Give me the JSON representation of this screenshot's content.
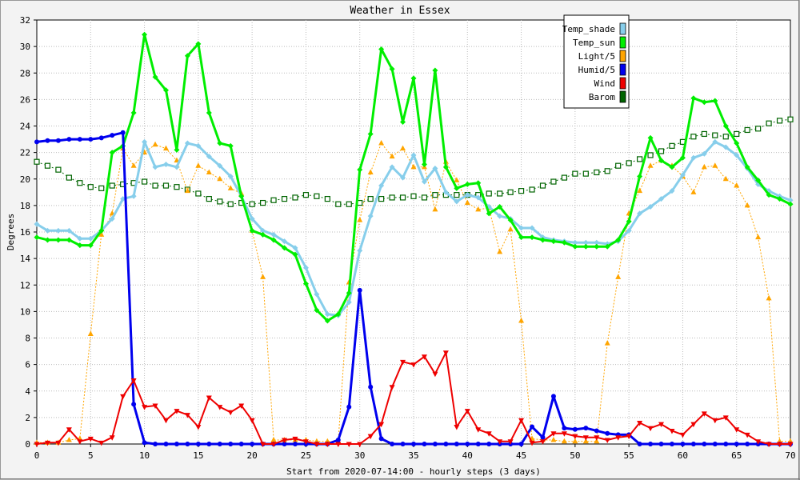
{
  "chart_data": {
    "type": "line",
    "title": "Weather in Essex",
    "xlabel": "Start from 2020-07-14:00 - hourly steps (3 days)",
    "ylabel": "Degrees",
    "xlim": [
      0,
      70
    ],
    "ylim": [
      0,
      32
    ],
    "xticks": [
      0,
      5,
      10,
      15,
      20,
      25,
      30,
      35,
      40,
      45,
      50,
      55,
      60,
      65,
      70
    ],
    "yticks": [
      0,
      2,
      4,
      6,
      8,
      10,
      12,
      14,
      16,
      18,
      20,
      22,
      24,
      26,
      28,
      30,
      32
    ],
    "grid": true,
    "legend_position": "top-right",
    "x": [
      0,
      1,
      2,
      3,
      4,
      5,
      6,
      7,
      8,
      9,
      10,
      11,
      12,
      13,
      14,
      15,
      16,
      17,
      18,
      19,
      20,
      21,
      22,
      23,
      24,
      25,
      26,
      27,
      28,
      29,
      30,
      31,
      32,
      33,
      34,
      35,
      36,
      37,
      38,
      39,
      40,
      41,
      42,
      43,
      44,
      45,
      46,
      47,
      48,
      49,
      50,
      51,
      52,
      53,
      54,
      55,
      56,
      57,
      58,
      59,
      60,
      61,
      62,
      63,
      64,
      65,
      66,
      67,
      68,
      69,
      70
    ],
    "series": [
      {
        "name": "Temp_shade",
        "color": "#87ceeb",
        "marker": "diamond",
        "dash": "",
        "width": 3,
        "values": [
          16.6,
          16.1,
          16.1,
          16.1,
          15.5,
          15.5,
          16.1,
          17.0,
          18.5,
          18.7,
          22.8,
          20.9,
          21.1,
          20.9,
          22.7,
          22.5,
          21.7,
          21.0,
          20.2,
          18.7,
          17.0,
          16.1,
          15.8,
          15.3,
          14.8,
          13.3,
          11.3,
          9.8,
          9.7,
          10.7,
          14.6,
          17.2,
          19.5,
          20.9,
          20.1,
          21.8,
          19.8,
          20.8,
          19.0,
          18.3,
          18.8,
          18.6,
          17.9,
          17.2,
          17.0,
          16.3,
          16.3,
          15.6,
          15.4,
          15.3,
          15.2,
          15.2,
          15.2,
          15.1,
          15.3,
          16.1,
          17.4,
          17.9,
          18.5,
          19.1,
          20.3,
          21.6,
          21.9,
          22.8,
          22.4,
          21.8,
          20.8,
          19.6,
          19.1,
          18.7,
          18.4
        ]
      },
      {
        "name": "Temp_sun",
        "color": "#00ee00",
        "marker": "diamond",
        "dash": "",
        "width": 3,
        "values": [
          15.6,
          15.4,
          15.4,
          15.4,
          15.0,
          15.0,
          16.1,
          22.0,
          22.5,
          25.0,
          30.9,
          27.7,
          26.7,
          22.2,
          29.3,
          30.2,
          25.0,
          22.7,
          22.5,
          18.7,
          16.1,
          15.8,
          15.4,
          14.8,
          14.3,
          12.1,
          10.1,
          9.3,
          9.8,
          11.4,
          20.7,
          23.4,
          29.8,
          28.3,
          24.3,
          27.6,
          21.1,
          28.2,
          20.9,
          19.3,
          19.6,
          19.7,
          17.4,
          17.9,
          16.9,
          15.6,
          15.6,
          15.4,
          15.3,
          15.2,
          14.9,
          14.9,
          14.9,
          14.9,
          15.4,
          16.8,
          20.2,
          23.1,
          21.4,
          20.9,
          21.6,
          26.1,
          25.8,
          25.9,
          24.0,
          22.7,
          20.9,
          19.9,
          18.8,
          18.5,
          18.1
        ]
      },
      {
        "name": "Light/5",
        "color": "#ffa500",
        "marker": "triangle-up",
        "dash": "2,2",
        "width": 1,
        "values": [
          0.1,
          0.1,
          0.1,
          0.3,
          0.4,
          8.3,
          15.8,
          17.4,
          22.3,
          21.0,
          22.0,
          22.6,
          22.3,
          21.4,
          19.1,
          21.0,
          20.5,
          20.0,
          19.3,
          18.9,
          16.1,
          12.6,
          0.3,
          0.3,
          0.3,
          0.3,
          0.2,
          0.2,
          0.2,
          12.2,
          16.9,
          20.5,
          22.7,
          21.7,
          22.3,
          20.9,
          20.9,
          17.7,
          21.3,
          19.9,
          18.2,
          17.7,
          17.8,
          14.5,
          16.2,
          9.3,
          0.4,
          0.3,
          0.3,
          0.2,
          0.2,
          0.2,
          0.2,
          7.6,
          12.6,
          17.4,
          19.1,
          21.0,
          21.4,
          21.0,
          20.2,
          19.0,
          20.9,
          21.0,
          20.0,
          19.5,
          18.0,
          15.6,
          11.0,
          0.2,
          0.2
        ]
      },
      {
        "name": "Humid/5",
        "color": "#0000ee",
        "marker": "circle",
        "dash": "",
        "width": 3,
        "values": [
          22.8,
          22.9,
          22.9,
          23.0,
          23.0,
          23.0,
          23.1,
          23.3,
          23.5,
          3.0,
          0.1,
          0.0,
          0.0,
          0.0,
          0.0,
          0.0,
          0.0,
          0.0,
          0.0,
          0.0,
          0.0,
          0.0,
          0.0,
          0.0,
          0.0,
          0.0,
          0.0,
          0.0,
          0.3,
          2.8,
          11.6,
          4.3,
          0.4,
          0.0,
          0.0,
          0.0,
          0.0,
          0.0,
          0.0,
          0.0,
          0.0,
          0.0,
          0.0,
          0.0,
          0.0,
          0.0,
          1.3,
          0.5,
          3.6,
          1.2,
          1.1,
          1.2,
          1.0,
          0.8,
          0.7,
          0.7,
          0.0,
          0.0,
          0.0,
          0.0,
          0.0,
          0.0,
          0.0,
          0.0,
          0.0,
          0.0,
          0.0,
          0.0,
          0.0,
          0.0,
          0.0
        ]
      },
      {
        "name": "Wind",
        "color": "#ee0000",
        "marker": "triangle-down",
        "dash": "",
        "width": 2,
        "values": [
          0.0,
          0.1,
          0.1,
          1.1,
          0.2,
          0.4,
          0.1,
          0.5,
          3.6,
          4.8,
          2.8,
          2.9,
          1.8,
          2.5,
          2.2,
          1.3,
          3.5,
          2.8,
          2.4,
          2.9,
          1.8,
          0.0,
          0.0,
          0.3,
          0.4,
          0.2,
          0.0,
          0.0,
          0.0,
          0.0,
          0.0,
          0.6,
          1.5,
          4.3,
          6.2,
          6.0,
          6.6,
          5.3,
          6.9,
          1.3,
          2.5,
          1.1,
          0.8,
          0.2,
          0.2,
          1.8,
          0.1,
          0.2,
          0.8,
          0.8,
          0.6,
          0.5,
          0.5,
          0.3,
          0.5,
          0.6,
          1.6,
          1.2,
          1.5,
          1.0,
          0.7,
          1.5,
          2.3,
          1.8,
          2.0,
          1.1,
          0.7,
          0.2,
          0.0,
          0.0,
          0.0
        ]
      },
      {
        "name": "Barom",
        "color": "#006400",
        "marker": "square",
        "dash": "2,3",
        "width": 1,
        "values": [
          21.3,
          21.0,
          20.7,
          20.1,
          19.7,
          19.4,
          19.3,
          19.5,
          19.6,
          19.7,
          19.8,
          19.5,
          19.5,
          19.4,
          19.2,
          18.9,
          18.5,
          18.3,
          18.1,
          18.2,
          18.1,
          18.2,
          18.4,
          18.5,
          18.6,
          18.8,
          18.7,
          18.5,
          18.1,
          18.1,
          18.2,
          18.5,
          18.5,
          18.6,
          18.6,
          18.7,
          18.6,
          18.8,
          18.8,
          18.8,
          18.8,
          18.8,
          18.9,
          18.9,
          19.0,
          19.1,
          19.2,
          19.5,
          19.8,
          20.1,
          20.4,
          20.4,
          20.5,
          20.6,
          21.0,
          21.2,
          21.5,
          21.8,
          22.1,
          22.5,
          22.8,
          23.2,
          23.4,
          23.3,
          23.2,
          23.4,
          23.7,
          23.8,
          24.2,
          24.4,
          24.5
        ]
      }
    ]
  }
}
